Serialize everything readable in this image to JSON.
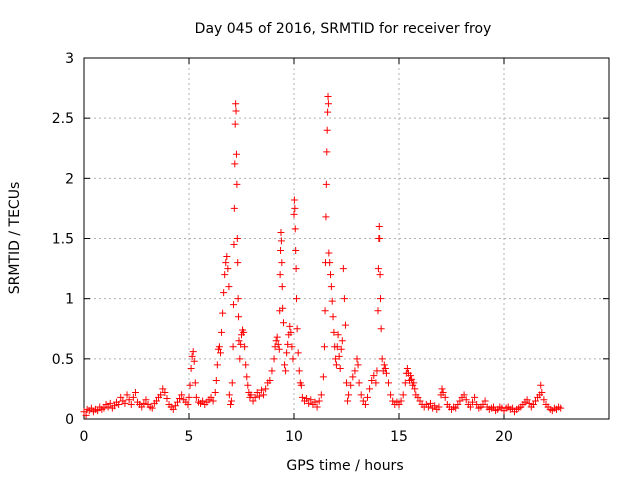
{
  "chart_data": {
    "type": "scatter",
    "title": "Day 045 of 2016, SRMTID for receiver froy",
    "xlabel": "GPS time / hours",
    "ylabel": "SRMTID / TECUs",
    "xlim": [
      0,
      25
    ],
    "ylim": [
      0,
      3
    ],
    "xticks": [
      0,
      5,
      10,
      15,
      20
    ],
    "yticks": [
      0,
      0.5,
      1,
      1.5,
      2,
      2.5,
      3
    ],
    "xtick_labels": [
      "0",
      "5",
      "10",
      "15",
      "20"
    ],
    "ytick_labels": [
      "0",
      "0.5",
      "1",
      "1.5",
      "2",
      "2.5",
      "3"
    ],
    "grid": true,
    "marker": "+",
    "color": "#ff0000",
    "series": [
      {
        "name": "SRMTID",
        "points": [
          [
            0.0,
            0.06
          ],
          [
            0.1,
            0.03
          ],
          [
            0.15,
            0.08
          ],
          [
            0.25,
            0.07
          ],
          [
            0.35,
            0.09
          ],
          [
            0.45,
            0.06
          ],
          [
            0.55,
            0.08
          ],
          [
            0.65,
            0.07
          ],
          [
            0.75,
            0.1
          ],
          [
            0.85,
            0.08
          ],
          [
            0.95,
            0.09
          ],
          [
            1.05,
            0.12
          ],
          [
            1.15,
            0.1
          ],
          [
            1.25,
            0.13
          ],
          [
            1.35,
            0.09
          ],
          [
            1.45,
            0.11
          ],
          [
            1.55,
            0.14
          ],
          [
            1.65,
            0.12
          ],
          [
            1.75,
            0.18
          ],
          [
            1.85,
            0.15
          ],
          [
            1.95,
            0.13
          ],
          [
            2.05,
            0.2
          ],
          [
            2.15,
            0.16
          ],
          [
            2.25,
            0.12
          ],
          [
            2.35,
            0.18
          ],
          [
            2.45,
            0.22
          ],
          [
            2.55,
            0.14
          ],
          [
            2.65,
            0.12
          ],
          [
            2.75,
            0.1
          ],
          [
            2.85,
            0.13
          ],
          [
            2.95,
            0.16
          ],
          [
            3.05,
            0.12
          ],
          [
            3.15,
            0.1
          ],
          [
            3.25,
            0.09
          ],
          [
            3.35,
            0.13
          ],
          [
            3.45,
            0.15
          ],
          [
            3.55,
            0.18
          ],
          [
            3.65,
            0.2
          ],
          [
            3.75,
            0.25
          ],
          [
            3.85,
            0.22
          ],
          [
            3.95,
            0.17
          ],
          [
            4.05,
            0.12
          ],
          [
            4.15,
            0.1
          ],
          [
            4.25,
            0.08
          ],
          [
            4.35,
            0.11
          ],
          [
            4.45,
            0.14
          ],
          [
            4.55,
            0.17
          ],
          [
            4.65,
            0.2
          ],
          [
            4.75,
            0.16
          ],
          [
            4.85,
            0.14
          ],
          [
            4.95,
            0.12
          ],
          [
            5.0,
            0.18
          ],
          [
            5.05,
            0.28
          ],
          [
            5.1,
            0.42
          ],
          [
            5.15,
            0.52
          ],
          [
            5.2,
            0.56
          ],
          [
            5.25,
            0.48
          ],
          [
            5.3,
            0.3
          ],
          [
            5.35,
            0.18
          ],
          [
            5.45,
            0.14
          ],
          [
            5.55,
            0.13
          ],
          [
            5.65,
            0.15
          ],
          [
            5.75,
            0.12
          ],
          [
            5.85,
            0.14
          ],
          [
            5.95,
            0.16
          ],
          [
            6.05,
            0.18
          ],
          [
            6.15,
            0.15
          ],
          [
            6.25,
            0.22
          ],
          [
            6.3,
            0.32
          ],
          [
            6.35,
            0.45
          ],
          [
            6.4,
            0.58
          ],
          [
            6.45,
            0.6
          ],
          [
            6.5,
            0.55
          ],
          [
            6.55,
            0.72
          ],
          [
            6.6,
            0.88
          ],
          [
            6.65,
            1.05
          ],
          [
            6.7,
            1.2
          ],
          [
            6.75,
            1.3
          ],
          [
            6.8,
            1.35
          ],
          [
            6.85,
            1.25
          ],
          [
            6.9,
            1.1
          ],
          [
            6.92,
            0.2
          ],
          [
            6.98,
            0.12
          ],
          [
            7.02,
            0.15
          ],
          [
            7.06,
            0.3
          ],
          [
            7.1,
            0.6
          ],
          [
            7.12,
            0.95
          ],
          [
            7.14,
            1.45
          ],
          [
            7.16,
            1.75
          ],
          [
            7.18,
            2.12
          ],
          [
            7.2,
            2.45
          ],
          [
            7.22,
            2.62
          ],
          [
            7.24,
            2.56
          ],
          [
            7.26,
            2.2
          ],
          [
            7.28,
            1.95
          ],
          [
            7.3,
            1.5
          ],
          [
            7.32,
            1.3
          ],
          [
            7.34,
            1.0
          ],
          [
            7.36,
            0.85
          ],
          [
            7.38,
            0.65
          ],
          [
            7.42,
            0.5
          ],
          [
            7.46,
            0.62
          ],
          [
            7.5,
            0.7
          ],
          [
            7.55,
            0.74
          ],
          [
            7.6,
            0.72
          ],
          [
            7.65,
            0.6
          ],
          [
            7.7,
            0.45
          ],
          [
            7.75,
            0.35
          ],
          [
            7.8,
            0.28
          ],
          [
            7.85,
            0.22
          ],
          [
            7.9,
            0.18
          ],
          [
            7.95,
            0.2
          ],
          [
            8.05,
            0.15
          ],
          [
            8.15,
            0.18
          ],
          [
            8.25,
            0.22
          ],
          [
            8.35,
            0.19
          ],
          [
            8.45,
            0.24
          ],
          [
            8.55,
            0.2
          ],
          [
            8.65,
            0.25
          ],
          [
            8.75,
            0.3
          ],
          [
            8.85,
            0.32
          ],
          [
            8.95,
            0.4
          ],
          [
            9.05,
            0.5
          ],
          [
            9.1,
            0.6
          ],
          [
            9.15,
            0.65
          ],
          [
            9.2,
            0.68
          ],
          [
            9.25,
            0.62
          ],
          [
            9.3,
            0.58
          ],
          [
            9.32,
            0.9
          ],
          [
            9.34,
            1.2
          ],
          [
            9.36,
            1.4
          ],
          [
            9.38,
            1.55
          ],
          [
            9.4,
            1.48
          ],
          [
            9.42,
            1.3
          ],
          [
            9.44,
            1.1
          ],
          [
            9.46,
            0.92
          ],
          [
            9.5,
            0.8
          ],
          [
            9.55,
            0.45
          ],
          [
            9.6,
            0.4
          ],
          [
            9.65,
            0.55
          ],
          [
            9.7,
            0.62
          ],
          [
            9.75,
            0.7
          ],
          [
            9.8,
            0.77
          ],
          [
            9.85,
            0.72
          ],
          [
            9.9,
            0.6
          ],
          [
            9.95,
            0.5
          ],
          [
            10.0,
            1.7
          ],
          [
            10.02,
            1.82
          ],
          [
            10.04,
            1.75
          ],
          [
            10.06,
            1.58
          ],
          [
            10.08,
            1.4
          ],
          [
            10.1,
            1.25
          ],
          [
            10.12,
            1.0
          ],
          [
            10.15,
            0.75
          ],
          [
            10.2,
            0.55
          ],
          [
            10.25,
            0.4
          ],
          [
            10.3,
            0.3
          ],
          [
            10.35,
            0.28
          ],
          [
            10.4,
            0.18
          ],
          [
            10.5,
            0.15
          ],
          [
            10.6,
            0.17
          ],
          [
            10.7,
            0.13
          ],
          [
            10.8,
            0.16
          ],
          [
            10.9,
            0.12
          ],
          [
            11.0,
            0.14
          ],
          [
            11.1,
            0.1
          ],
          [
            11.2,
            0.15
          ],
          [
            11.3,
            0.2
          ],
          [
            11.4,
            0.35
          ],
          [
            11.45,
            0.6
          ],
          [
            11.48,
            0.9
          ],
          [
            11.5,
            1.3
          ],
          [
            11.52,
            1.68
          ],
          [
            11.54,
            1.95
          ],
          [
            11.56,
            2.22
          ],
          [
            11.58,
            2.4
          ],
          [
            11.6,
            2.55
          ],
          [
            11.62,
            2.68
          ],
          [
            11.64,
            2.62
          ],
          [
            11.66,
            1.38
          ],
          [
            11.7,
            1.3
          ],
          [
            11.74,
            1.2
          ],
          [
            11.78,
            1.1
          ],
          [
            11.82,
            0.98
          ],
          [
            11.86,
            0.85
          ],
          [
            11.9,
            0.72
          ],
          [
            11.94,
            0.6
          ],
          [
            11.98,
            0.5
          ],
          [
            12.02,
            0.45
          ],
          [
            12.06,
            0.6
          ],
          [
            12.1,
            0.7
          ],
          [
            12.15,
            0.52
          ],
          [
            12.2,
            0.42
          ],
          [
            12.25,
            0.58
          ],
          [
            12.3,
            0.65
          ],
          [
            12.35,
            1.25
          ],
          [
            12.4,
            1.0
          ],
          [
            12.45,
            0.78
          ],
          [
            12.5,
            0.3
          ],
          [
            12.55,
            0.15
          ],
          [
            12.6,
            0.2
          ],
          [
            12.7,
            0.28
          ],
          [
            12.8,
            0.35
          ],
          [
            12.9,
            0.4
          ],
          [
            13.0,
            0.5
          ],
          [
            13.05,
            0.45
          ],
          [
            13.1,
            0.3
          ],
          [
            13.2,
            0.2
          ],
          [
            13.3,
            0.15
          ],
          [
            13.4,
            0.12
          ],
          [
            13.5,
            0.18
          ],
          [
            13.6,
            0.25
          ],
          [
            13.7,
            0.32
          ],
          [
            13.8,
            0.36
          ],
          [
            13.9,
            0.3
          ],
          [
            13.95,
            0.4
          ],
          [
            14.0,
            0.9
          ],
          [
            14.02,
            1.25
          ],
          [
            14.04,
            1.5
          ],
          [
            14.06,
            1.6
          ],
          [
            14.08,
            1.5
          ],
          [
            14.1,
            1.2
          ],
          [
            14.12,
            1.0
          ],
          [
            14.15,
            0.75
          ],
          [
            14.2,
            0.5
          ],
          [
            14.25,
            0.4
          ],
          [
            14.3,
            0.45
          ],
          [
            14.35,
            0.42
          ],
          [
            14.4,
            0.38
          ],
          [
            14.5,
            0.3
          ],
          [
            14.6,
            0.2
          ],
          [
            14.7,
            0.15
          ],
          [
            14.8,
            0.12
          ],
          [
            14.9,
            0.14
          ],
          [
            15.0,
            0.12
          ],
          [
            15.1,
            0.15
          ],
          [
            15.2,
            0.2
          ],
          [
            15.3,
            0.3
          ],
          [
            15.35,
            0.38
          ],
          [
            15.4,
            0.42
          ],
          [
            15.45,
            0.38
          ],
          [
            15.5,
            0.32
          ],
          [
            15.55,
            0.36
          ],
          [
            15.6,
            0.33
          ],
          [
            15.65,
            0.28
          ],
          [
            15.7,
            0.3
          ],
          [
            15.75,
            0.25
          ],
          [
            15.8,
            0.2
          ],
          [
            15.9,
            0.18
          ],
          [
            16.0,
            0.15
          ],
          [
            16.1,
            0.12
          ],
          [
            16.2,
            0.1
          ],
          [
            16.3,
            0.12
          ],
          [
            16.4,
            0.1
          ],
          [
            16.5,
            0.13
          ],
          [
            16.6,
            0.09
          ],
          [
            16.7,
            0.11
          ],
          [
            16.8,
            0.08
          ],
          [
            16.9,
            0.1
          ],
          [
            17.0,
            0.2
          ],
          [
            17.05,
            0.25
          ],
          [
            17.1,
            0.22
          ],
          [
            17.2,
            0.18
          ],
          [
            17.3,
            0.12
          ],
          [
            17.4,
            0.1
          ],
          [
            17.5,
            0.08
          ],
          [
            17.6,
            0.1
          ],
          [
            17.7,
            0.09
          ],
          [
            17.8,
            0.12
          ],
          [
            17.9,
            0.15
          ],
          [
            18.0,
            0.18
          ],
          [
            18.1,
            0.2
          ],
          [
            18.2,
            0.16
          ],
          [
            18.3,
            0.12
          ],
          [
            18.4,
            0.1
          ],
          [
            18.5,
            0.14
          ],
          [
            18.6,
            0.18
          ],
          [
            18.7,
            0.12
          ],
          [
            18.8,
            0.09
          ],
          [
            18.9,
            0.1
          ],
          [
            19.0,
            0.12
          ],
          [
            19.1,
            0.15
          ],
          [
            19.2,
            0.1
          ],
          [
            19.3,
            0.08
          ],
          [
            19.4,
            0.09
          ],
          [
            19.5,
            0.1
          ],
          [
            19.6,
            0.07
          ],
          [
            19.7,
            0.08
          ],
          [
            19.8,
            0.1
          ],
          [
            19.9,
            0.09
          ],
          [
            20.0,
            0.07
          ],
          [
            20.1,
            0.09
          ],
          [
            20.2,
            0.1
          ],
          [
            20.3,
            0.08
          ],
          [
            20.4,
            0.09
          ],
          [
            20.5,
            0.06
          ],
          [
            20.6,
            0.08
          ],
          [
            20.7,
            0.09
          ],
          [
            20.8,
            0.1
          ],
          [
            20.9,
            0.12
          ],
          [
            21.0,
            0.14
          ],
          [
            21.1,
            0.16
          ],
          [
            21.2,
            0.13
          ],
          [
            21.3,
            0.1
          ],
          [
            21.4,
            0.12
          ],
          [
            21.5,
            0.15
          ],
          [
            21.6,
            0.18
          ],
          [
            21.7,
            0.2
          ],
          [
            21.75,
            0.28
          ],
          [
            21.8,
            0.22
          ],
          [
            21.9,
            0.16
          ],
          [
            22.0,
            0.12
          ],
          [
            22.1,
            0.1
          ],
          [
            22.2,
            0.08
          ],
          [
            22.3,
            0.07
          ],
          [
            22.4,
            0.09
          ],
          [
            22.5,
            0.08
          ],
          [
            22.6,
            0.1
          ],
          [
            22.7,
            0.09
          ]
        ]
      }
    ]
  }
}
